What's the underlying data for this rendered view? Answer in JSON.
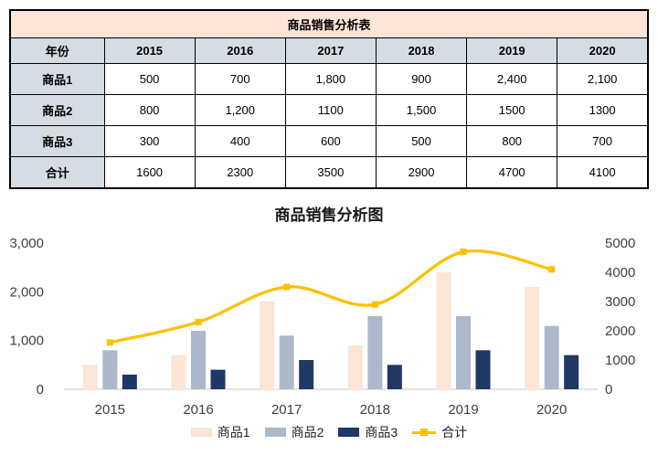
{
  "table": {
    "title": "商品销售分析表",
    "header": [
      "年份",
      "2015",
      "2016",
      "2017",
      "2018",
      "2019",
      "2020"
    ],
    "rows": [
      {
        "label": "商品1",
        "values": [
          "500",
          "700",
          "1,800",
          "900",
          "2,400",
          "2,100"
        ]
      },
      {
        "label": "商品2",
        "values": [
          "800",
          "1,200",
          "1100",
          "1,500",
          "1500",
          "1300"
        ]
      },
      {
        "label": "商品3",
        "values": [
          "300",
          "400",
          "600",
          "500",
          "800",
          "700"
        ]
      },
      {
        "label": "合计",
        "values": [
          "1600",
          "2300",
          "3500",
          "2900",
          "4700",
          "4100"
        ]
      }
    ],
    "colors": {
      "title_bg": "#fce4d6",
      "header_bg": "#d6dce4",
      "border": "#000000"
    }
  },
  "chart_data": {
    "type": "bar",
    "subtype": "grouped-bar-with-line-combo",
    "title": "商品销售分析图",
    "categories": [
      "2015",
      "2016",
      "2017",
      "2018",
      "2019",
      "2020"
    ],
    "series": [
      {
        "name": "商品1",
        "type": "bar",
        "axis": "left",
        "color": "#fbe5d6",
        "values": [
          500,
          700,
          1800,
          900,
          2400,
          2100
        ]
      },
      {
        "name": "商品2",
        "type": "bar",
        "axis": "left",
        "color": "#adb9ca",
        "values": [
          800,
          1200,
          1100,
          1500,
          1500,
          1300
        ]
      },
      {
        "name": "商品3",
        "type": "bar",
        "axis": "left",
        "color": "#1f3864",
        "values": [
          300,
          400,
          600,
          500,
          800,
          700
        ]
      },
      {
        "name": "合计",
        "type": "line",
        "axis": "right",
        "color": "#ffc000",
        "smooth": true,
        "marker": "square",
        "values": [
          1600,
          2300,
          3500,
          2900,
          4700,
          4100
        ]
      }
    ],
    "left_axis": {
      "min": 0,
      "max": 3000,
      "ticks": [
        "0",
        "1,000",
        "2,000",
        "3,000"
      ]
    },
    "right_axis": {
      "min": 0,
      "max": 5000,
      "ticks": [
        "0",
        "1000",
        "2000",
        "3000",
        "4000",
        "5000"
      ]
    },
    "grid": false,
    "legend_position": "bottom",
    "baseline_color": "#c9c9c9",
    "axis_text_color": "#404040",
    "title_color": "#1a1a1a"
  }
}
